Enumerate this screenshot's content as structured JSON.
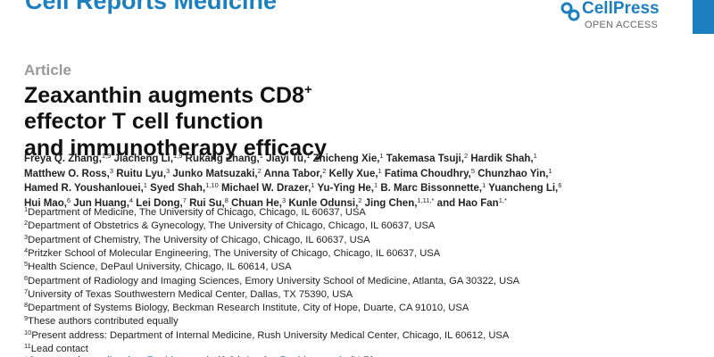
{
  "header": {
    "journal": "Cell Reports Medicine",
    "publisher": "CellPress",
    "access": "OPEN ACCESS"
  },
  "article": {
    "type": "Article",
    "title_lines": [
      "Zeaxanthin augments CD8",
      "effector T cell function",
      "and immunotherapy efficacy"
    ],
    "title_sup": "+",
    "author_lines": [
      [
        {
          "name": "Freya Q. Zhang,",
          "sup": "1,9"
        },
        {
          "name": "Jiacheng Li,",
          "sup": "1,9"
        },
        {
          "name": "Rukang Zhang,",
          "sup": "1"
        },
        {
          "name": "Jiayi Tu,",
          "sup": "1"
        },
        {
          "name": "Zhicheng Xie,",
          "sup": "1"
        },
        {
          "name": "Takemasa Tsuji,",
          "sup": "2"
        },
        {
          "name": "Hardik Shah,",
          "sup": "1"
        }
      ],
      [
        {
          "name": "Matthew O. Ross,",
          "sup": "3"
        },
        {
          "name": "Ruitu Lyu,",
          "sup": "3"
        },
        {
          "name": "Junko Matsuzaki,",
          "sup": "2"
        },
        {
          "name": "Anna Tabor,",
          "sup": "2"
        },
        {
          "name": "Kelly Xue,",
          "sup": "1"
        },
        {
          "name": "Fatima Choudhry,",
          "sup": "5"
        },
        {
          "name": "Chunzhao Yin,",
          "sup": "1"
        }
      ],
      [
        {
          "name": "Hamed R. Youshanlouei,",
          "sup": "1"
        },
        {
          "name": "Syed Shah,",
          "sup": "1,10"
        },
        {
          "name": "Michael W. Drazer,",
          "sup": "1"
        },
        {
          "name": "Yu-Ying He,",
          "sup": "1"
        },
        {
          "name": "B. Marc Bissonnette,",
          "sup": "1"
        },
        {
          "name": "Yuancheng Li,",
          "sup": "6"
        }
      ],
      [
        {
          "name": "Hui Mao,",
          "sup": "6"
        },
        {
          "name": "Jun Huang,",
          "sup": "4"
        },
        {
          "name": "Lei Dong,",
          "sup": "7"
        },
        {
          "name": "Rui Su,",
          "sup": "8"
        },
        {
          "name": "Chuan He,",
          "sup": "3"
        },
        {
          "name": "Kunle Odunsi,",
          "sup": "2"
        },
        {
          "name": "Jing Chen,",
          "sup": "1,11,*"
        },
        {
          "name": "and Hao Fan",
          "sup": "1,*"
        }
      ]
    ],
    "affiliations": [
      {
        "sup": "1",
        "text": "Department of Medicine, The University of Chicago, Chicago, IL 60637, USA"
      },
      {
        "sup": "2",
        "text": "Department of Obstetrics & Gynecology, The University of Chicago, Chicago, IL 60637, USA"
      },
      {
        "sup": "3",
        "text": "Department of Chemistry, The University of Chicago, Chicago, IL 60637, USA"
      },
      {
        "sup": "4",
        "text": "Pritzker School of Molecular Engineering, The University of Chicago, Chicago, IL 60637, USA"
      },
      {
        "sup": "5",
        "text": "Health Science, DePaul University, Chicago, IL 60614, USA"
      },
      {
        "sup": "6",
        "text": "Department of Radiology and Imaging Sciences, Emory University School of Medicine, Atlanta, GA 30322, USA"
      },
      {
        "sup": "7",
        "text": "University of Texas Southwestern Medical Center, Dallas, TX 75390, USA"
      },
      {
        "sup": "8",
        "text": "Department of Systems Biology, Beckman Research Institute, City of Hope, Duarte, CA 91010, USA"
      },
      {
        "sup": "9",
        "text": "These authors contributed equally"
      },
      {
        "sup": "10",
        "text": "Present address: Department of Internal Medicine, Rush University Medical Center, Chicago, IL 60612, USA"
      },
      {
        "sup": "11",
        "text": "Lead contact"
      }
    ],
    "correspondence": {
      "label": "*Correspondence:",
      "emails": [
        {
          "address": "jingchen@uchicago.edu",
          "note": "(J.C.),"
        },
        {
          "address": "haofan@uchicago.edu",
          "note": "(H.F.)"
        }
      ]
    }
  }
}
